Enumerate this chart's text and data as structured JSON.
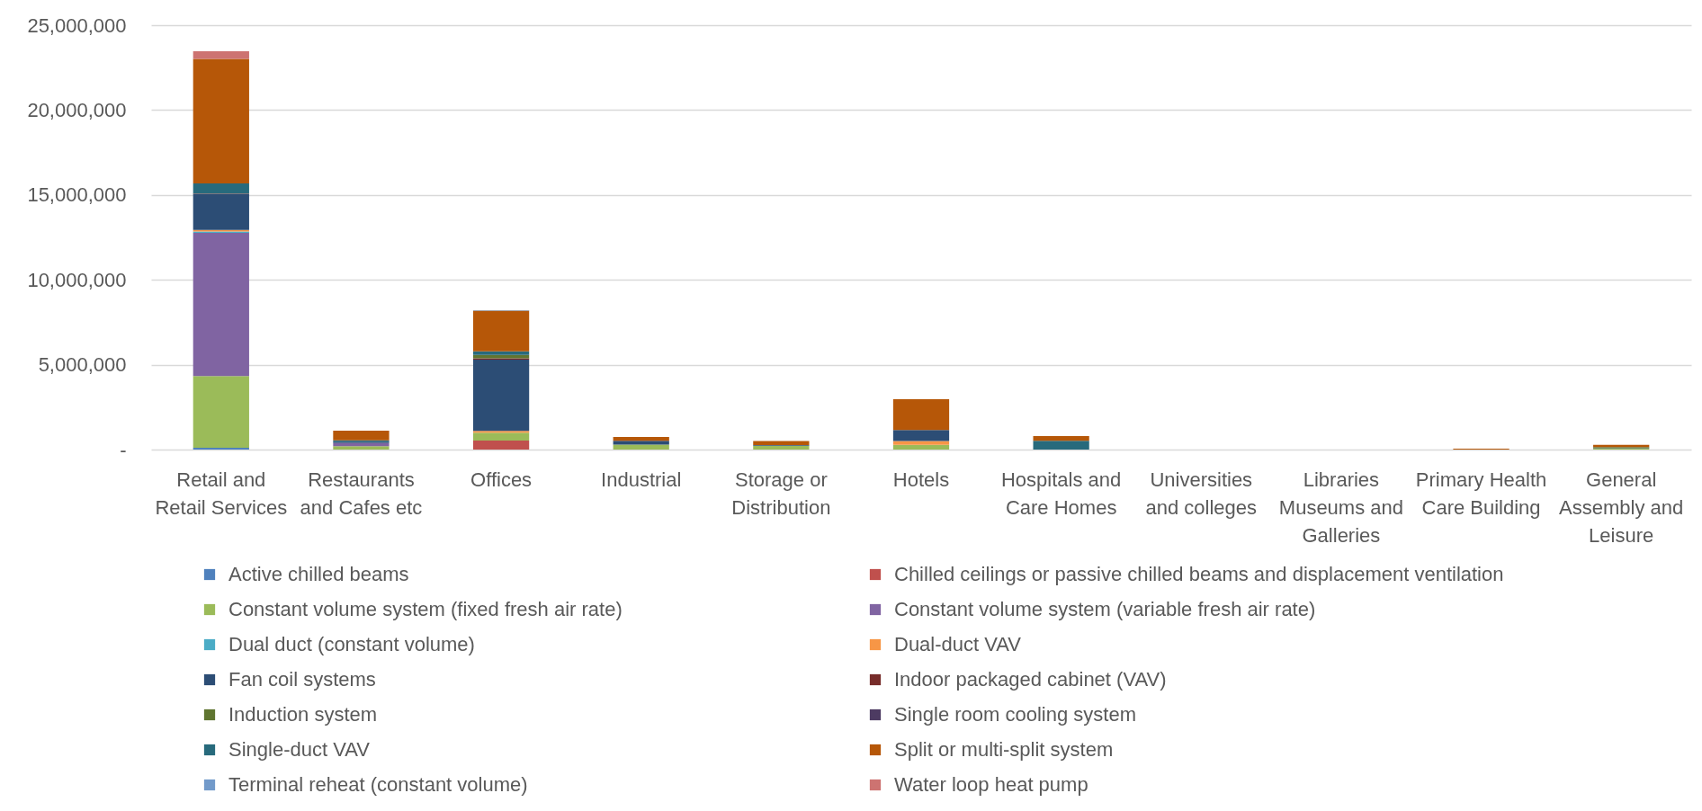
{
  "chart_data": {
    "type": "bar",
    "stacked": true,
    "categories": [
      "Retail and Retail Services",
      "Restaurants and Cafes etc",
      "Offices",
      "Industrial",
      "Storage or Distribution",
      "Hotels",
      "Hospitals and Care Homes",
      "Universities and colleges",
      "Libraries Museums and Galleries",
      "Primary Health Care Building",
      "General Assembly and Leisure"
    ],
    "series": [
      {
        "name": "Active chilled beams",
        "color": "#4f81bd",
        "values": [
          100000,
          null,
          null,
          null,
          null,
          null,
          null,
          null,
          null,
          null,
          null
        ]
      },
      {
        "name": "Chilled ceilings or passive chilled beams and displacement ventilation",
        "color": "#c0504d",
        "values": [
          null,
          null,
          530000,
          null,
          null,
          null,
          null,
          null,
          null,
          null,
          null
        ]
      },
      {
        "name": "Constant volume system (fixed fresh air rate)",
        "color": "#9bbb59",
        "values": [
          4230000,
          200000,
          460000,
          290000,
          230000,
          280000,
          null,
          null,
          null,
          null,
          50000
        ]
      },
      {
        "name": "Constant volume system (variable fresh air rate)",
        "color": "#8064a2",
        "values": [
          8440000,
          180000,
          null,
          null,
          null,
          null,
          null,
          null,
          null,
          null,
          null
        ]
      },
      {
        "name": "Dual duct (constant volume)",
        "color": "#4bacc6",
        "values": [
          80000,
          null,
          null,
          null,
          null,
          null,
          null,
          null,
          null,
          null,
          null
        ]
      },
      {
        "name": "Dual-duct VAV",
        "color": "#f79646",
        "values": [
          90000,
          null,
          110000,
          null,
          null,
          220000,
          null,
          null,
          null,
          null,
          null
        ]
      },
      {
        "name": "Fan coil systems",
        "color": "#2c4d75",
        "values": [
          2110000,
          80000,
          4200000,
          230000,
          40000,
          650000,
          null,
          null,
          null,
          null,
          30000
        ]
      },
      {
        "name": "Indoor packaged cabinet (VAV)",
        "color": "#772c2a",
        "values": [
          30000,
          null,
          70000,
          null,
          null,
          null,
          null,
          null,
          null,
          null,
          null
        ]
      },
      {
        "name": "Induction system",
        "color": "#5f7530",
        "values": [
          null,
          null,
          210000,
          null,
          null,
          null,
          null,
          null,
          null,
          null,
          60000
        ]
      },
      {
        "name": "Single room cooling system",
        "color": "#4d3b62",
        "values": [
          null,
          null,
          null,
          null,
          null,
          null,
          null,
          null,
          null,
          null,
          null
        ]
      },
      {
        "name": "Single-duct VAV",
        "color": "#276a7c",
        "values": [
          600000,
          80000,
          200000,
          null,
          null,
          null,
          520000,
          null,
          null,
          null,
          null
        ]
      },
      {
        "name": "Split or multi-split system",
        "color": "#b65708",
        "values": [
          7340000,
          570000,
          2400000,
          220000,
          230000,
          1820000,
          270000,
          null,
          null,
          50000,
          140000
        ]
      },
      {
        "name": "Terminal reheat (constant volume)",
        "color": "#729aca",
        "values": [
          null,
          null,
          30000,
          null,
          null,
          null,
          null,
          null,
          null,
          null,
          null
        ]
      },
      {
        "name": "Water loop heat pump",
        "color": "#cd7371",
        "values": [
          450000,
          null,
          null,
          null,
          null,
          null,
          null,
          null,
          null,
          null,
          null
        ]
      }
    ],
    "ylim": [
      0,
      25000000
    ],
    "yticks": [
      {
        "value": 0,
        "label": "-"
      },
      {
        "value": 5000000,
        "label": "5,000,000"
      },
      {
        "value": 10000000,
        "label": "10,000,000"
      },
      {
        "value": 15000000,
        "label": "15,000,000"
      },
      {
        "value": 20000000,
        "label": "20,000,000"
      },
      {
        "value": 25000000,
        "label": "25,000,000"
      }
    ],
    "grid": "y",
    "legend": "bottom"
  }
}
